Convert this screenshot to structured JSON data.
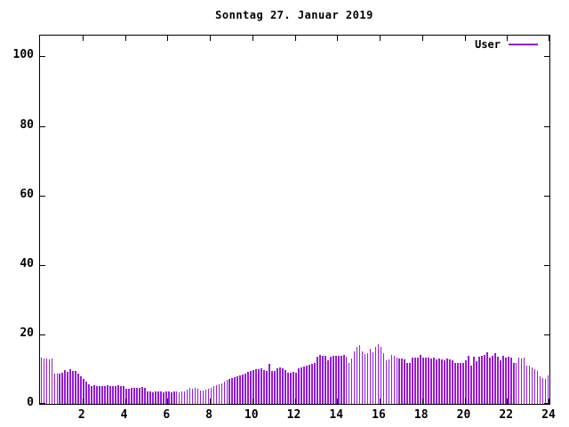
{
  "window": {
    "background_color": "#ffffff",
    "text_color": "#000000",
    "axis_color": "#000000"
  },
  "legend": {
    "label": "User",
    "position": "top-right-inside"
  },
  "chart_data": {
    "type": "bar",
    "title": "Sonntag 27. Januar 2019",
    "xlabel": "",
    "ylabel": "",
    "xlim": [
      0,
      24
    ],
    "ylim": [
      0,
      106
    ],
    "x_ticks": [
      2,
      4,
      6,
      8,
      10,
      12,
      14,
      16,
      18,
      20,
      22,
      24
    ],
    "y_ticks": [
      0,
      20,
      40,
      60,
      80,
      100
    ],
    "grid": false,
    "legend_position": "top-right-inside",
    "bar_interval_hours": 0.125,
    "series": [
      {
        "name": "User",
        "color": "#941cd2",
        "values": [
          13.2,
          13.0,
          13.1,
          12.9,
          13.0,
          8.8,
          8.6,
          8.7,
          9.0,
          9.8,
          9.3,
          10.0,
          9.5,
          9.4,
          8.7,
          8.0,
          7.2,
          6.4,
          5.7,
          5.2,
          5.3,
          5.1,
          5.2,
          5.2,
          5.1,
          5.3,
          5.2,
          5.1,
          5.2,
          5.3,
          5.1,
          5.2,
          4.4,
          4.3,
          4.5,
          4.7,
          4.6,
          4.7,
          4.8,
          4.6,
          3.6,
          3.5,
          3.4,
          3.5,
          3.6,
          3.5,
          3.4,
          3.5,
          3.5,
          3.4,
          3.6,
          3.5,
          3.4,
          3.5,
          3.6,
          4.2,
          4.5,
          4.4,
          4.6,
          4.3,
          3.9,
          3.8,
          4.0,
          4.4,
          4.7,
          5.0,
          5.3,
          5.6,
          6.0,
          6.4,
          6.8,
          7.2,
          7.5,
          7.8,
          8.0,
          8.3,
          8.5,
          8.8,
          9.1,
          9.4,
          9.7,
          9.9,
          10.1,
          10.3,
          9.8,
          9.6,
          11.4,
          9.5,
          9.6,
          10.3,
          10.4,
          10.2,
          9.8,
          8.9,
          9.0,
          9.1,
          9.0,
          10.2,
          10.5,
          10.8,
          11.0,
          11.2,
          11.5,
          11.7,
          13.7,
          14.0,
          13.8,
          13.9,
          12.6,
          13.5,
          13.8,
          13.9,
          13.9,
          13.8,
          14.0,
          13.7,
          11.8,
          13.1,
          15.2,
          16.3,
          17.0,
          15.2,
          14.4,
          14.7,
          15.8,
          14.9,
          16.3,
          17.2,
          16.5,
          14.7,
          12.6,
          12.7,
          14.2,
          13.9,
          13.4,
          13.1,
          13.0,
          12.9,
          11.9,
          11.8,
          13.3,
          13.2,
          13.4,
          14.0,
          13.3,
          13.2,
          13.4,
          13.1,
          13.2,
          12.9,
          13.0,
          12.8,
          12.6,
          13.0,
          12.7,
          12.5,
          11.8,
          11.7,
          11.9,
          11.8,
          12.6,
          13.9,
          10.9,
          13.7,
          12.4,
          13.7,
          13.8,
          14.0,
          14.8,
          13.2,
          13.9,
          14.6,
          13.7,
          12.6,
          13.9,
          13.4,
          13.6,
          13.2,
          11.7,
          11.8,
          13.2,
          13.1,
          13.3,
          11.0,
          10.9,
          10.4,
          10.0,
          9.5,
          8.0,
          7.5,
          7.3,
          8.2
        ]
      }
    ]
  }
}
